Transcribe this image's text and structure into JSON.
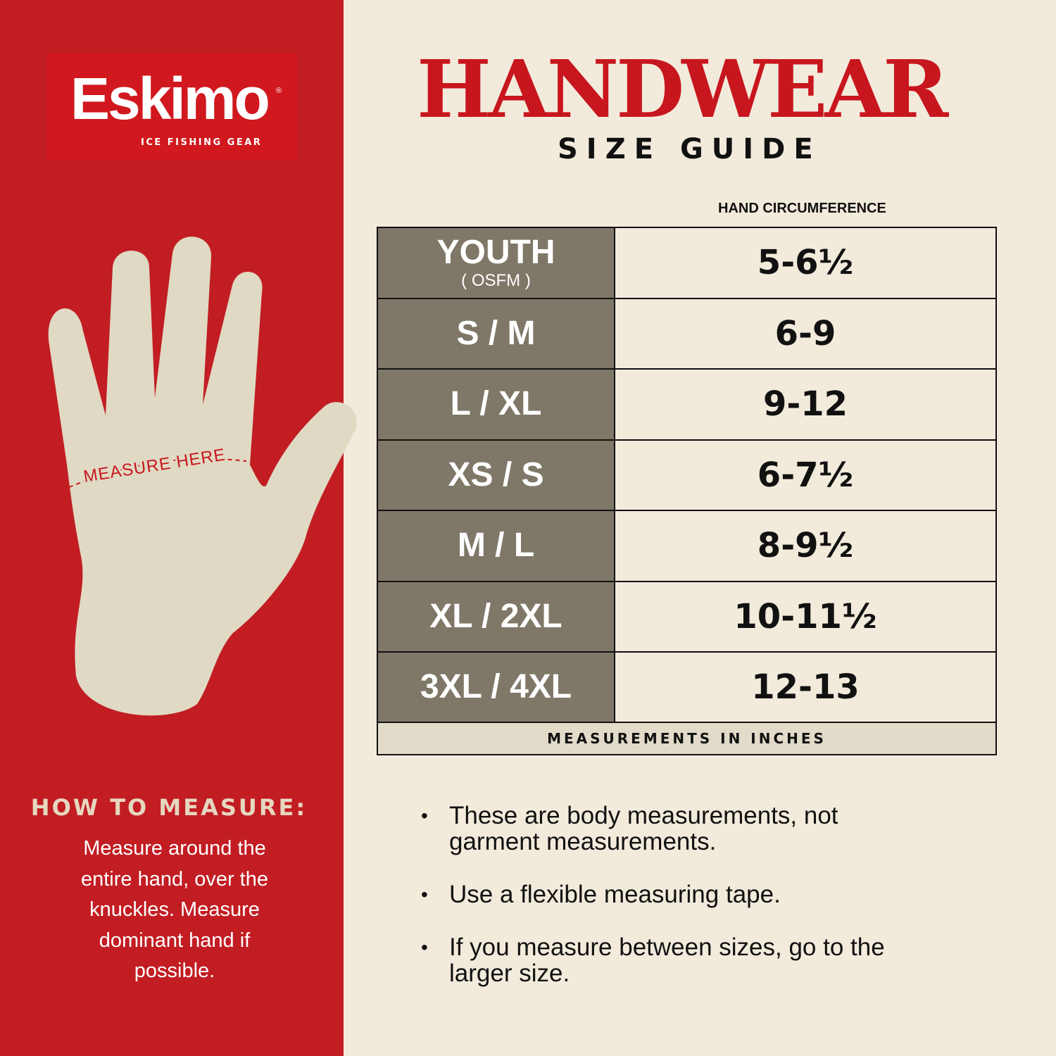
{
  "brand": {
    "name": "Eskimo",
    "tagline": "ICE FISHING GEAR",
    "registered": "®"
  },
  "title": "HANDWEAR",
  "subtitle": "SIZE GUIDE",
  "hand": {
    "label": "MEASURE HERE"
  },
  "table": {
    "column_header": "HAND CIRCUMFERENCE",
    "rows": [
      {
        "size": "YOUTH",
        "note": "( OSFM )",
        "value": "5-6½"
      },
      {
        "size": "S / M",
        "value": "6-9"
      },
      {
        "size": "L / XL",
        "value": "9-12"
      },
      {
        "size": "XS / S",
        "value": "6-7½"
      },
      {
        "size": "M / L",
        "value": "8-9½"
      },
      {
        "size": "XL / 2XL",
        "value": "10-11½"
      },
      {
        "size": "3XL / 4XL",
        "value": "12-13"
      }
    ],
    "footer": "MEASUREMENTS IN INCHES"
  },
  "how_to": {
    "heading": "HOW TO MEASURE:",
    "text": "Measure around the entire hand, over the knuckles. Measure dominant hand if possible."
  },
  "notes": [
    "These are body measurements, not garment measurements.",
    "Use a flexible measuring tape.",
    "If you measure between sizes, go to the larger size."
  ],
  "colors": {
    "red": "#c21d23",
    "title_red": "#c8161e",
    "size_cell": "#7f7868",
    "background": "#f2ebdc",
    "hand": "#e0d9c3"
  }
}
